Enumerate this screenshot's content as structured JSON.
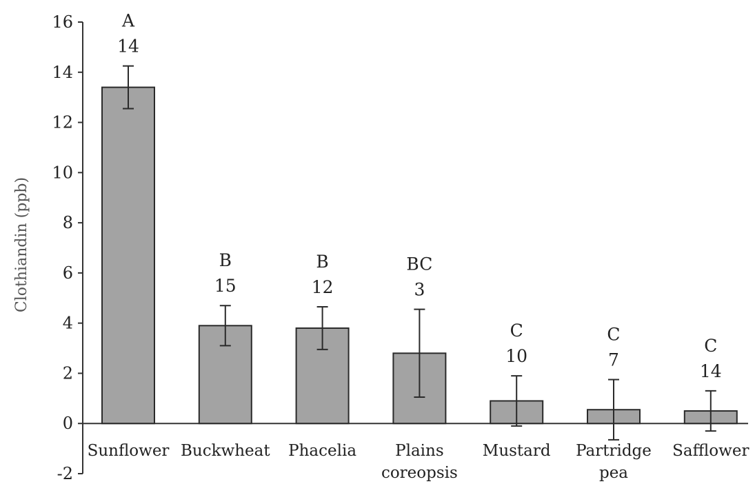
{
  "chart_data": {
    "type": "bar",
    "title": "",
    "xlabel": "",
    "ylabel": "Clothiandin  (ppb)",
    "ylim": [
      -2,
      16
    ],
    "yticks": [
      16,
      14,
      12,
      10,
      8,
      6,
      4,
      2,
      0,
      -2
    ],
    "grid": false,
    "categories": [
      [
        "Sunflower"
      ],
      [
        "Buckwheat"
      ],
      [
        "Phacelia"
      ],
      [
        "Plains",
        "coreopsis"
      ],
      [
        "Mustard"
      ],
      [
        "Partridge",
        "pea"
      ],
      [
        "Safflower"
      ]
    ],
    "values": [
      13.4,
      3.9,
      3.8,
      2.8,
      0.9,
      0.55,
      0.5
    ],
    "error": [
      0.85,
      0.8,
      0.85,
      1.75,
      1.0,
      1.2,
      0.8
    ],
    "letters": [
      "A",
      "B",
      "B",
      "BC",
      "C",
      "C",
      "C"
    ],
    "n": [
      "14",
      "15",
      "12",
      "3",
      "10",
      "7",
      "14"
    ]
  }
}
